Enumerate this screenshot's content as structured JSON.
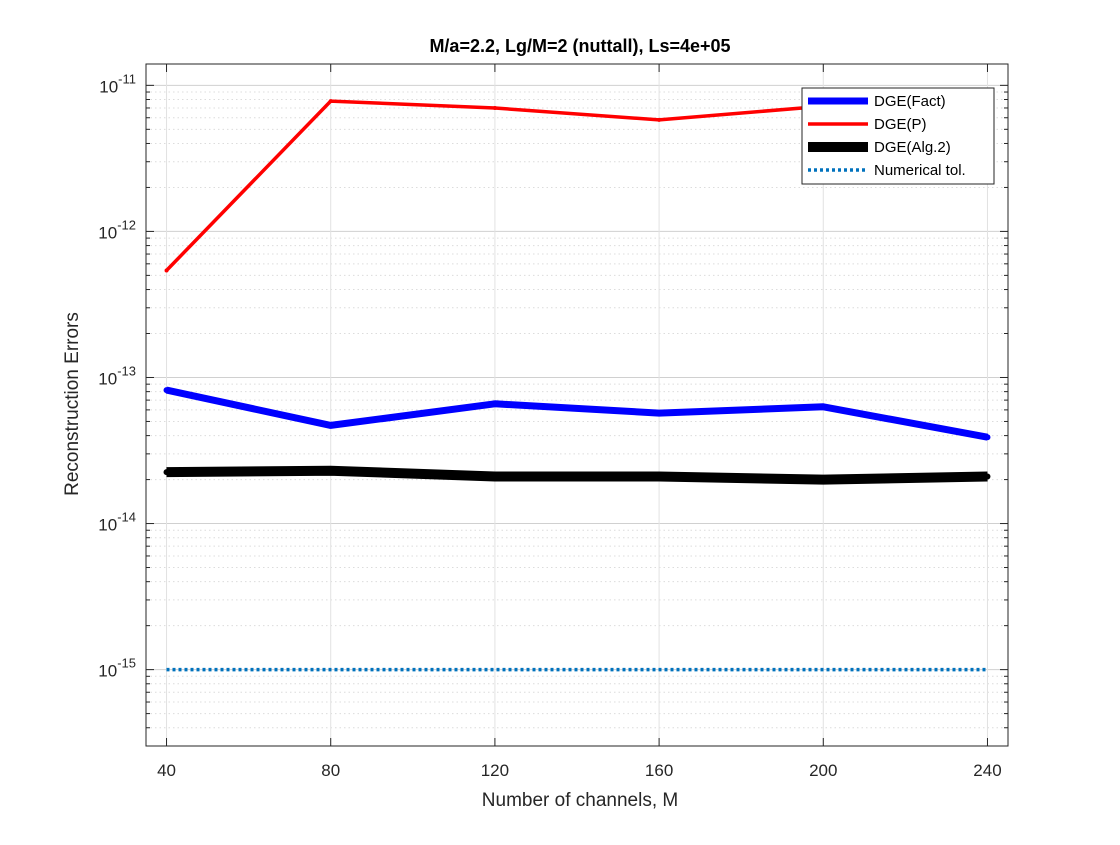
{
  "chart_data": {
    "type": "line",
    "title": "M/a=2.2, Lg/M=2 (nuttall), Ls=4e+05",
    "xlabel": "Number of channels, M",
    "ylabel": "Reconstruction Errors",
    "x": [
      40,
      80,
      120,
      160,
      200,
      240
    ],
    "xlim": [
      35,
      245
    ],
    "xticks": [
      "40",
      "80",
      "120",
      "160",
      "200",
      "240"
    ],
    "ylim": [
      3e-16,
      1.4e-11
    ],
    "yscale": "log",
    "yticks": [
      {
        "value": 1e-15,
        "base": "10",
        "exp": "-15"
      },
      {
        "value": 1e-14,
        "base": "10",
        "exp": "-14"
      },
      {
        "value": 1e-13,
        "base": "10",
        "exp": "-13"
      },
      {
        "value": 1e-12,
        "base": "10",
        "exp": "-12"
      },
      {
        "value": 1e-11,
        "base": "10",
        "exp": "-11"
      }
    ],
    "grid": true,
    "minor_grid": true,
    "legend_position": "top-right",
    "series": [
      {
        "name": "DGE(Fact)",
        "color": "#0000ff",
        "values": [
          8.2e-14,
          4.7e-14,
          6.6e-14,
          5.7e-14,
          6.3e-14,
          3.9e-14
        ]
      },
      {
        "name": "DGE(P)",
        "color": "#ff0000",
        "values": [
          5.4e-13,
          7.8e-12,
          7e-12,
          5.8e-12,
          7.2e-12,
          5.8e-12
        ]
      },
      {
        "name": "DGE(Alg.2)",
        "color": "#000000",
        "values": [
          2.25e-14,
          2.3e-14,
          2.1e-14,
          2.1e-14,
          2e-14,
          2.1e-14
        ]
      },
      {
        "name": "Numerical tol.",
        "color": "#0072bd",
        "values": [
          1e-15,
          1e-15,
          1e-15,
          1e-15,
          1e-15,
          1e-15
        ]
      }
    ]
  }
}
